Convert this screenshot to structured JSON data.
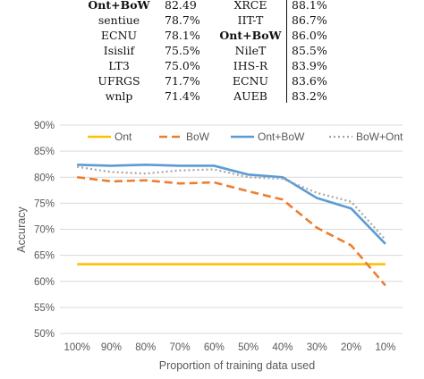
{
  "results_table": {
    "rows": [
      {
        "left_name": "Ont+BoW",
        "left_score": "82.49",
        "right_name": "XRCE",
        "right_score": "88.1%",
        "left_bold": true,
        "right_bold": false
      },
      {
        "left_name": "sentiue",
        "left_score": "78.7%",
        "right_name": "IIT-T",
        "right_score": "86.7%",
        "left_bold": false,
        "right_bold": false
      },
      {
        "left_name": "ECNU",
        "left_score": "78.1%",
        "right_name": "Ont+BoW",
        "right_score": "86.0%",
        "left_bold": false,
        "right_bold": true
      },
      {
        "left_name": "Isislif",
        "left_score": "75.5%",
        "right_name": "NileT",
        "right_score": "85.5%",
        "left_bold": false,
        "right_bold": false
      },
      {
        "left_name": "LT3",
        "left_score": "75.0%",
        "right_name": "IHS-R",
        "right_score": "83.9%",
        "left_bold": false,
        "right_bold": false
      },
      {
        "left_name": "UFRGS",
        "left_score": "71.7%",
        "right_name": "ECNU",
        "right_score": "83.6%",
        "left_bold": false,
        "right_bold": false
      },
      {
        "left_name": "wnlp",
        "left_score": "71.4%",
        "right_name": "AUEB",
        "right_score": "83.2%",
        "left_bold": false,
        "right_bold": false
      }
    ]
  },
  "chart_data": {
    "type": "line",
    "title": "",
    "xlabel": "Proportion of training data used",
    "ylabel": "Accuracy",
    "categories": [
      "100%",
      "90%",
      "80%",
      "70%",
      "60%",
      "50%",
      "40%",
      "30%",
      "20%",
      "10%"
    ],
    "ylim": [
      50,
      90
    ],
    "yticks": [
      "50%",
      "55%",
      "60%",
      "65%",
      "70%",
      "75%",
      "80%",
      "85%",
      "90%"
    ],
    "grid": true,
    "legend_position": "top",
    "series": [
      {
        "name": "Ont",
        "color": "#FFC000",
        "style": "solid",
        "values": [
          63.3,
          63.3,
          63.3,
          63.3,
          63.3,
          63.3,
          63.3,
          63.3,
          63.3,
          63.3
        ]
      },
      {
        "name": "BoW",
        "color": "#ED7D31",
        "style": "dashed",
        "values": [
          80.0,
          79.2,
          79.4,
          78.8,
          79.0,
          77.3,
          75.7,
          70.3,
          66.9,
          59.2
        ]
      },
      {
        "name": "Ont+BoW",
        "color": "#5B9BD5",
        "style": "solid",
        "values": [
          82.4,
          82.2,
          82.4,
          82.2,
          82.2,
          80.5,
          80.0,
          76.0,
          74.0,
          67.2
        ]
      },
      {
        "name": "BoW+Ont",
        "color": "#A5A5A5",
        "style": "dotted",
        "values": [
          82.0,
          81.0,
          80.7,
          81.3,
          81.5,
          80.0,
          79.7,
          77.0,
          75.3,
          68.0
        ]
      }
    ]
  }
}
